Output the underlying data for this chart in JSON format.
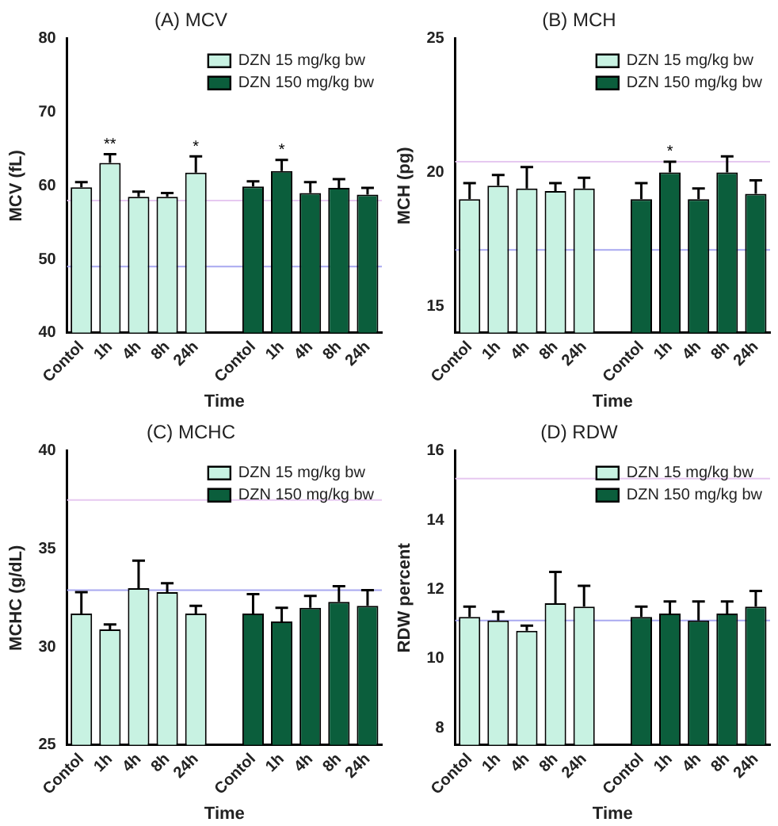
{
  "chart_data": [
    {
      "type": "bar",
      "title": "(A) MCV",
      "xlabel": "Time",
      "ylabel": "MCV (fL)",
      "categories": [
        "Contol",
        "1h",
        "4h",
        "8h",
        "24h",
        null,
        "Contol",
        "1h",
        "4h",
        "8h",
        "24h"
      ],
      "series": [
        {
          "name": "DZN 15 mg/kg bw",
          "color": "#c8f2e2",
          "values": [
            59.8,
            63.1,
            58.5,
            58.5,
            61.8,
            null,
            null,
            null,
            null,
            null,
            null
          ],
          "errors": [
            0.7,
            1.2,
            0.7,
            0.5,
            2.2,
            null,
            null,
            null,
            null,
            null,
            null
          ],
          "value_labels": [
            null,
            "**",
            null,
            null,
            "*",
            null,
            null,
            null,
            null,
            null,
            null
          ]
        },
        {
          "name": "DZN 150 mg/kg bw",
          "color": "#0b5e3c",
          "values": [
            null,
            null,
            null,
            null,
            null,
            null,
            59.9,
            62.0,
            59.0,
            59.7,
            58.8
          ],
          "errors": [
            null,
            null,
            null,
            null,
            null,
            null,
            0.7,
            1.5,
            1.5,
            1.2,
            0.9
          ],
          "value_labels": [
            null,
            null,
            null,
            null,
            null,
            null,
            null,
            "*",
            null,
            null,
            null
          ]
        }
      ],
      "ylim": [
        40,
        80
      ],
      "yticks": [
        40,
        50,
        60,
        70,
        80
      ],
      "ref_lines": [
        {
          "axis": "y",
          "value": 58,
          "color": "#e6c8f0"
        },
        {
          "axis": "y",
          "value": 49,
          "color": "#a8a8f0"
        }
      ],
      "grid": false,
      "legend": "top right"
    },
    {
      "type": "bar",
      "title": "(B) MCH",
      "xlabel": "Time",
      "ylabel": "MCH (pg)",
      "categories": [
        "Contol",
        "1h",
        "4h",
        "8h",
        "24h",
        null,
        "Contol",
        "1h",
        "4h",
        "8h",
        "24h"
      ],
      "series": [
        {
          "name": "DZN 15 mg/kg bw",
          "color": "#c8f2e2",
          "values": [
            19.0,
            19.5,
            19.4,
            19.3,
            19.4,
            null,
            null,
            null,
            null,
            null,
            null
          ],
          "errors": [
            0.6,
            0.4,
            0.8,
            0.3,
            0.4,
            null,
            null,
            null,
            null,
            null,
            null
          ]
        },
        {
          "name": "DZN 150 mg/kg bw",
          "color": "#0b5e3c",
          "values": [
            null,
            null,
            null,
            null,
            null,
            null,
            19.0,
            20.0,
            19.0,
            20.0,
            19.2
          ],
          "errors": [
            null,
            null,
            null,
            null,
            null,
            null,
            0.6,
            0.4,
            0.4,
            0.6,
            0.5
          ],
          "value_labels": [
            null,
            null,
            null,
            null,
            null,
            null,
            null,
            "*",
            null,
            null,
            null
          ]
        }
      ],
      "ylim": [
        14,
        25
      ],
      "yticks": [
        15,
        20,
        25
      ],
      "ref_lines": [
        {
          "axis": "y",
          "value": 20.4,
          "color": "#e6c8f0"
        },
        {
          "axis": "y",
          "value": 17.1,
          "color": "#a8a8f0"
        }
      ],
      "grid": false,
      "legend": "top right"
    },
    {
      "type": "bar",
      "title": "(C) MCHC",
      "xlabel": "Time",
      "ylabel": "MCHC (g/dL)",
      "categories": [
        "Contol",
        "1h",
        "4h",
        "8h",
        "24h",
        null,
        "Contol",
        "1h",
        "4h",
        "8h",
        "24h"
      ],
      "series": [
        {
          "name": "DZN 15 mg/kg bw",
          "color": "#c8f2e2",
          "values": [
            31.7,
            30.9,
            33.0,
            32.8,
            31.7,
            null,
            null,
            null,
            null,
            null,
            null
          ],
          "errors": [
            1.1,
            0.25,
            1.4,
            0.45,
            0.4,
            null,
            null,
            null,
            null,
            null,
            null
          ]
        },
        {
          "name": "DZN 150 mg/kg bw",
          "color": "#0b5e3c",
          "values": [
            null,
            null,
            null,
            null,
            null,
            null,
            31.7,
            31.3,
            32.0,
            32.3,
            32.1
          ],
          "errors": [
            null,
            null,
            null,
            null,
            null,
            null,
            1.0,
            0.7,
            0.6,
            0.8,
            0.8
          ]
        }
      ],
      "ylim": [
        25,
        40
      ],
      "yticks": [
        25,
        30,
        35,
        40
      ],
      "ref_lines": [
        {
          "axis": "y",
          "value": 37.5,
          "color": "#e6c8f0"
        },
        {
          "axis": "y",
          "value": 32.9,
          "color": "#a8a8f0"
        }
      ],
      "grid": false,
      "legend": "top right"
    },
    {
      "type": "bar",
      "title": "(D) RDW",
      "xlabel": "Time",
      "ylabel": "RDW percent",
      "categories": [
        "Contol",
        "1h",
        "4h",
        "8h",
        "24h",
        null,
        "Contol",
        "1h",
        "4h",
        "8h",
        "24h"
      ],
      "series": [
        {
          "name": "DZN 15 mg/kg bw",
          "color": "#c8f2e2",
          "values": [
            11.2,
            11.1,
            10.8,
            11.6,
            11.5,
            null,
            null,
            null,
            null,
            null,
            null
          ],
          "errors": [
            0.3,
            0.25,
            0.15,
            0.9,
            0.6,
            null,
            null,
            null,
            null,
            null,
            null
          ]
        },
        {
          "name": "DZN 150 mg/kg bw",
          "color": "#0b5e3c",
          "values": [
            null,
            null,
            null,
            null,
            null,
            null,
            11.2,
            11.3,
            11.1,
            11.3,
            11.5
          ],
          "errors": [
            null,
            null,
            null,
            null,
            null,
            null,
            0.3,
            0.35,
            0.55,
            0.35,
            0.45
          ]
        }
      ],
      "ylim": [
        7.5,
        16
      ],
      "yticks": [
        8,
        10,
        12,
        14,
        16
      ],
      "ref_lines": [
        {
          "axis": "y",
          "value": 15.2,
          "color": "#e6c8f0"
        },
        {
          "axis": "y",
          "value": 11.1,
          "color": "#a8a8f0"
        }
      ],
      "grid": false,
      "legend": "top right"
    }
  ]
}
